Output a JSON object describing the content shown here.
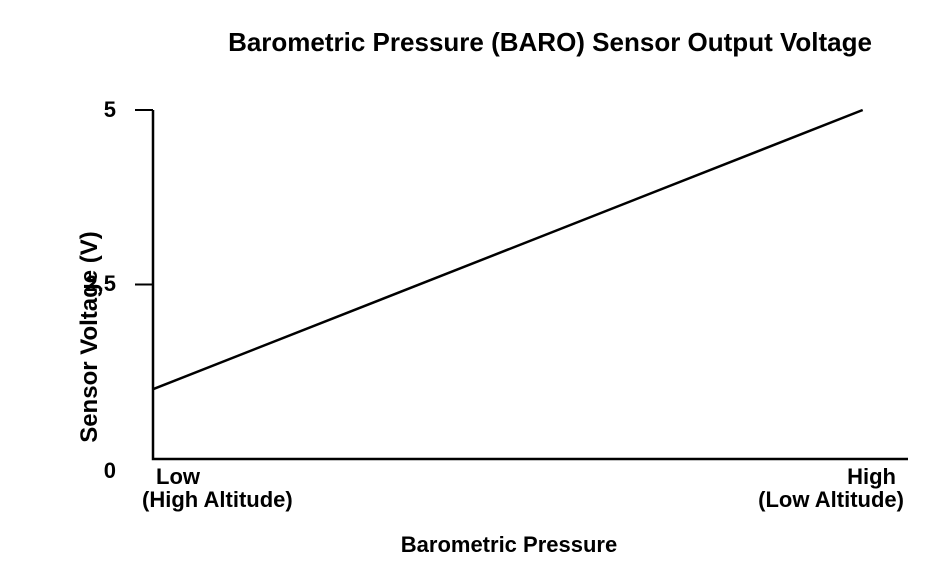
{
  "page": {
    "background_color": "#ffffff",
    "foreground_color": "#000000"
  },
  "chart_data": {
    "type": "line",
    "title": "Barometric Pressure (BARO) Sensor Output Voltage",
    "xlabel": "Barometric Pressure",
    "ylabel": "Sensor Voltage (V)",
    "ylim": [
      0,
      5
    ],
    "grid": false,
    "legend": "none",
    "axis_color": "#000000",
    "line_color": "#000000",
    "y_ticks": [
      {
        "value": 5,
        "label": "5"
      },
      {
        "value": 2.5,
        "label": "2.5"
      },
      {
        "value": 0,
        "label": "0"
      }
    ],
    "x_end_labels": {
      "left": {
        "label": "Low",
        "sublabel": "(High Altitude)"
      },
      "right": {
        "label": "High",
        "sublabel": "(Low Altitude)"
      }
    },
    "series": [
      {
        "name": "sensor_output_voltage",
        "points": [
          {
            "x_fraction": 0.0,
            "voltage": 1.0
          },
          {
            "x_fraction": 0.94,
            "voltage": 5.0
          }
        ]
      }
    ]
  }
}
